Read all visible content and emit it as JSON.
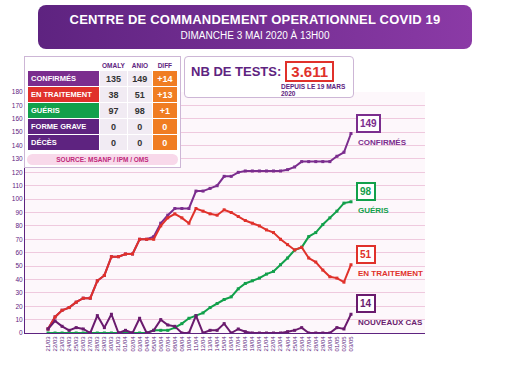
{
  "header": {
    "title": "CENTRE DE COMMANDEMENT OPERATIONNEL COVID 19",
    "subtitle": "DIMANCHE 3 MAI 2020 À 13H00"
  },
  "tests": {
    "label": "NB DE TESTS:",
    "value": "3.611",
    "note": "DEPUIS LE 19 MARS 2020"
  },
  "table": {
    "columns": [
      "OMALY",
      "ANIO",
      "DIFF"
    ],
    "rows": [
      {
        "label": "CONFIRMÉS",
        "color": "#7b2d8e",
        "values": [
          "135",
          "149",
          "+14"
        ]
      },
      {
        "label": "EN TRAITEMENT",
        "color": "#e0312b",
        "values": [
          "38",
          "51",
          "+13"
        ]
      },
      {
        "label": "GUÉRIS",
        "color": "#12a04b",
        "values": [
          "97",
          "98",
          "+1"
        ]
      },
      {
        "label": "FORME GRAVE",
        "color": "#5e2380",
        "values": [
          "0",
          "0",
          "0"
        ]
      },
      {
        "label": "DÉCÈS",
        "color": "#5e2380",
        "values": [
          "0",
          "0",
          "0"
        ]
      }
    ],
    "source": "SOURCE: MSANP / IPM / OMS"
  },
  "chart_data": {
    "type": "line",
    "categories": [
      "21/03",
      "22/03",
      "23/03",
      "24/03",
      "25/03",
      "26/03",
      "27/03",
      "28/03",
      "29/03",
      "30/03",
      "31/03",
      "01/04",
      "02/04",
      "03/04",
      "04/04",
      "05/04",
      "06/04",
      "07/04",
      "08/04",
      "09/04",
      "10/04",
      "11/04",
      "12/04",
      "13/04",
      "14/04",
      "15/04",
      "16/04",
      "17/04",
      "18/04",
      "19/04",
      "20/04",
      "21/04",
      "22/04",
      "23/04",
      "24/04",
      "25/04",
      "26/04",
      "27/04",
      "28/04",
      "29/04",
      "30/04",
      "01/05",
      "02/05",
      "03/05"
    ],
    "series": [
      {
        "name": "CONFIRMÉS",
        "color": "#7b2d8e",
        "values": [
          3,
          12,
          17,
          19,
          23,
          26,
          26,
          39,
          43,
          57,
          57,
          59,
          59,
          70,
          70,
          72,
          82,
          88,
          93,
          93,
          93,
          106,
          106,
          108,
          110,
          117,
          117,
          120,
          121,
          121,
          121,
          121,
          121,
          121,
          122,
          124,
          128,
          128,
          128,
          128,
          128,
          132,
          135,
          149
        ]
      },
      {
        "name": "GUÉRIS",
        "color": "#12a04b",
        "values": [
          0,
          0,
          0,
          0,
          0,
          0,
          0,
          0,
          0,
          0,
          0,
          0,
          0,
          0,
          0,
          2,
          2,
          2,
          4,
          7,
          11,
          13,
          15,
          19,
          22,
          25,
          27,
          33,
          37,
          39,
          41,
          44,
          46,
          51,
          56,
          62,
          64,
          72,
          75,
          81,
          86,
          91,
          97,
          98
        ]
      },
      {
        "name": "EN TRAITEMENT",
        "color": "#e0312b",
        "values": [
          3,
          12,
          17,
          19,
          23,
          26,
          26,
          39,
          43,
          57,
          57,
          59,
          59,
          70,
          70,
          70,
          80,
          86,
          89,
          86,
          82,
          93,
          91,
          89,
          88,
          92,
          90,
          87,
          84,
          82,
          80,
          77,
          75,
          70,
          66,
          62,
          64,
          56,
          53,
          47,
          42,
          41,
          38,
          51
        ]
      },
      {
        "name": "NOUVEAUX CAS",
        "color": "#6a1b6e",
        "values": [
          3,
          9,
          5,
          2,
          4,
          3,
          0,
          13,
          4,
          14,
          0,
          2,
          0,
          11,
          0,
          2,
          10,
          6,
          5,
          0,
          0,
          13,
          0,
          2,
          2,
          7,
          0,
          3,
          1,
          0,
          0,
          0,
          0,
          0,
          1,
          2,
          4,
          0,
          0,
          0,
          0,
          4,
          3,
          14
        ]
      }
    ],
    "ylim": [
      0,
      180
    ],
    "yticks": [
      0,
      10,
      20,
      30,
      40,
      50,
      60,
      70,
      80,
      90,
      100,
      110,
      120,
      130,
      140,
      150,
      160,
      170,
      180
    ],
    "grid": true,
    "marker": "square"
  }
}
